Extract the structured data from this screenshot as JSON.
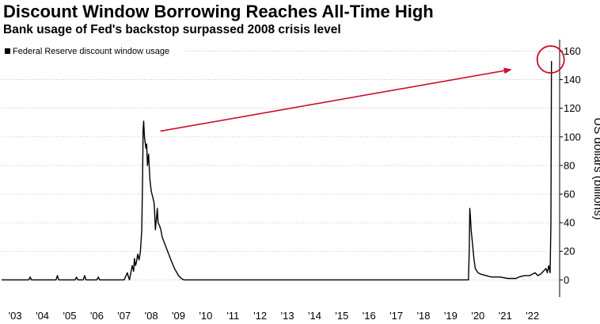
{
  "chart_data": {
    "type": "line",
    "title": "Discount Window Borrowing Reaches All-Time High",
    "subtitle": "Bank usage of Fed's backstop surpassed 2008 crisis level",
    "ylabel": "US dollars (billions)",
    "xlabel": "",
    "ylim": [
      -12,
      168
    ],
    "yticks": [
      0,
      20,
      40,
      60,
      80,
      100,
      120,
      140,
      160
    ],
    "xlim": [
      2003,
      2023.5
    ],
    "x_tick_labels": [
      "'03",
      "'04",
      "'05",
      "'06",
      "'07",
      "'08",
      "'09",
      "'10",
      "'11",
      "'12",
      "'13",
      "'14",
      "'15",
      "'16",
      "'17",
      "'18",
      "'19",
      "'20",
      "'21",
      "'22"
    ],
    "x_tick_years": [
      2003,
      2004,
      2005,
      2006,
      2007,
      2008,
      2009,
      2010,
      2011,
      2012,
      2013,
      2014,
      2015,
      2016,
      2017,
      2018,
      2019,
      2020,
      2021,
      2022
    ],
    "grid": true,
    "legend_position": "top-left",
    "annotations": [
      "arrow from 2008 peak to 2023 peak",
      "circle around 2023 peak"
    ],
    "colors": {
      "series": "#000000",
      "annotation": "#c8102e",
      "grid": "#bbbbbb"
    },
    "series": [
      {
        "name": "Federal Reserve discount window usage",
        "x": [
          2003.0,
          2004.0,
          2004.05,
          2004.1,
          2004.9,
          2005.0,
          2005.05,
          2005.1,
          2005.3,
          2005.7,
          2005.75,
          2005.8,
          2006.0,
          2006.05,
          2006.1,
          2006.5,
          2006.55,
          2006.6,
          2006.9,
          2007.0,
          2007.5,
          2007.62,
          2007.66,
          2007.7,
          2007.8,
          2007.85,
          2007.88,
          2007.92,
          2007.95,
          2008.0,
          2008.05,
          2008.1,
          2008.15,
          2008.18,
          2008.2,
          2008.22,
          2008.25,
          2008.3,
          2008.33,
          2008.36,
          2008.4,
          2008.45,
          2008.5,
          2008.55,
          2008.6,
          2008.62,
          2008.65,
          2008.7,
          2008.72,
          2008.75,
          2008.8,
          2008.85,
          2008.9,
          2009.0,
          2009.1,
          2009.2,
          2009.35,
          2009.5,
          2009.6,
          2009.7,
          2009.8,
          2009.9,
          2009.95,
          2010.0,
          2010.1,
          2011.0,
          2012.0,
          2013.0,
          2014.0,
          2015.0,
          2016.0,
          2017.0,
          2018.0,
          2019.0,
          2019.9,
          2020.15,
          2020.18,
          2020.2,
          2020.22,
          2020.25,
          2020.3,
          2020.35,
          2020.4,
          2020.5,
          2020.6,
          2020.8,
          2021.0,
          2021.3,
          2021.6,
          2021.9,
          2022.0,
          2022.2,
          2022.4,
          2022.5,
          2022.6,
          2022.7,
          2022.8,
          2022.9,
          2023.0,
          2023.05,
          2023.1,
          2023.15,
          2023.18,
          2023.2
        ],
        "y": [
          0,
          0,
          2,
          0,
          0,
          0,
          3,
          0,
          0,
          0,
          2,
          0,
          0,
          3,
          0,
          0,
          2,
          0,
          0,
          0,
          0,
          5,
          2,
          0,
          10,
          6,
          15,
          10,
          12,
          18,
          14,
          20,
          35,
          70,
          105,
          111,
          100,
          92,
          95,
          80,
          88,
          70,
          62,
          58,
          54,
          48,
          35,
          45,
          50,
          40,
          38,
          35,
          30,
          25,
          20,
          15,
          8,
          3,
          1,
          0,
          0,
          0,
          0,
          0,
          0,
          0,
          0,
          0,
          0,
          0,
          0,
          0,
          0,
          0,
          0,
          0,
          20,
          50,
          45,
          35,
          25,
          15,
          8,
          5,
          4,
          3,
          2,
          2,
          1,
          1,
          2,
          3,
          3,
          4,
          5,
          3,
          4,
          6,
          8,
          5,
          10,
          5,
          40,
          153
        ]
      }
    ]
  }
}
